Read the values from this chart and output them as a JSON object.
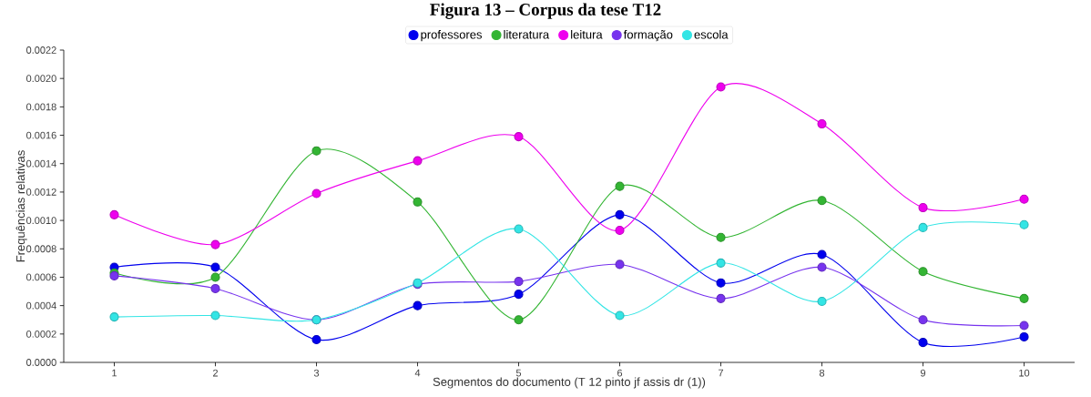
{
  "chart_data": {
    "type": "line",
    "title": "Figura 13 – Corpus da tese T12",
    "xlabel": "Segmentos do documento (T 12 pinto  jf  assis  dr (1))",
    "ylabel": "Frequências relativas",
    "categories": [
      "1",
      "2",
      "3",
      "4",
      "5",
      "6",
      "7",
      "8",
      "9",
      "10"
    ],
    "series": [
      {
        "name": "professores",
        "color": "#0000ee",
        "values": [
          0.00067,
          0.00067,
          0.00016,
          0.0004,
          0.00048,
          0.00104,
          0.00056,
          0.00076,
          0.00014,
          0.00018
        ]
      },
      {
        "name": "literatura",
        "color": "#33b533",
        "values": [
          0.00063,
          0.0006,
          0.00149,
          0.00113,
          0.0003,
          0.00124,
          0.00088,
          0.00114,
          0.00064,
          0.00045
        ]
      },
      {
        "name": "leitura",
        "color": "#ee00ee",
        "values": [
          0.00104,
          0.00083,
          0.00119,
          0.00142,
          0.00159,
          0.00093,
          0.00194,
          0.00168,
          0.00109,
          0.00115
        ]
      },
      {
        "name": "formação",
        "color": "#7733ee",
        "values": [
          0.00061,
          0.00052,
          0.0003,
          0.00055,
          0.00057,
          0.00069,
          0.00045,
          0.00067,
          0.0003,
          0.00026
        ]
      },
      {
        "name": "escola",
        "color": "#33e5e5",
        "values": [
          0.00032,
          0.00033,
          0.0003,
          0.00056,
          0.00094,
          0.00033,
          0.0007,
          0.00043,
          0.00095,
          0.00097
        ]
      }
    ],
    "ylim": [
      0,
      0.0022
    ],
    "yticks": [
      {
        "value": 0,
        "label": "0.0000"
      },
      {
        "value": 0.0002,
        "label": "0.0002"
      },
      {
        "value": 0.0004,
        "label": "0.0004"
      },
      {
        "value": 0.0006,
        "label": "0.0006"
      },
      {
        "value": 0.0008,
        "label": "0.0008"
      },
      {
        "value": 0.001,
        "label": "0.0010"
      },
      {
        "value": 0.0012,
        "label": "0.0012"
      },
      {
        "value": 0.0014,
        "label": "0.0014"
      },
      {
        "value": 0.0016,
        "label": "0.0016"
      },
      {
        "value": 0.0018,
        "label": "0.0018"
      },
      {
        "value": 0.002,
        "label": "0.0020"
      },
      {
        "value": 0.0022,
        "label": "0.0022"
      }
    ],
    "legend": "top",
    "grid": false,
    "marker": "circle",
    "line_style": "solid"
  }
}
